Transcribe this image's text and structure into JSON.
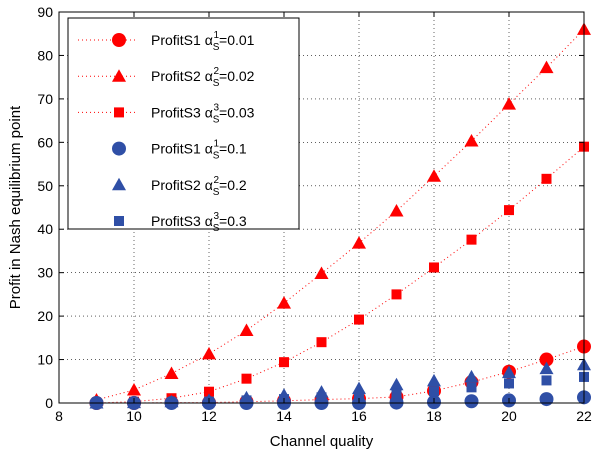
{
  "chart_data": {
    "type": "scatter",
    "xlabel": "Channel quality",
    "ylabel": "Profit in Nash equilibrium point",
    "xlim": [
      8,
      22
    ],
    "ylim": [
      0,
      90
    ],
    "xticks": [
      "8",
      "10",
      "12",
      "14",
      "16",
      "18",
      "20",
      "22"
    ],
    "yticks": [
      "0",
      "10",
      "20",
      "30",
      "40",
      "50",
      "60",
      "70",
      "80",
      "90"
    ],
    "grid": true,
    "legend_placement": "top-left",
    "x": [
      9,
      10,
      11,
      12,
      13,
      14,
      15,
      16,
      17,
      18,
      19,
      20,
      21,
      22
    ],
    "series": [
      {
        "label": "ProfitS1",
        "alpha_index": "1",
        "alpha_value": "=0.01",
        "color": "#ff0000",
        "marker": "circle",
        "dotted_line": true,
        "values": [
          0.0,
          0.0,
          0.1,
          0.1,
          0.3,
          0.5,
          0.8,
          1.0,
          1.4,
          2.8,
          4.8,
          7.2,
          10.0,
          13.0
        ]
      },
      {
        "label": "ProfitS2",
        "alpha_index": "2",
        "alpha_value": "=0.02",
        "color": "#ff0000",
        "marker": "triangle",
        "dotted_line": true,
        "values": [
          0.7,
          3.0,
          6.8,
          11.3,
          16.7,
          23.0,
          29.8,
          36.8,
          44.2,
          52.2,
          60.3,
          68.8,
          77.2,
          86.0
        ]
      },
      {
        "label": "ProfitS3",
        "alpha_index": "3",
        "alpha_value": "=0.03",
        "color": "#ff0000",
        "marker": "square",
        "dotted_line": true,
        "values": [
          0.0,
          0.3,
          1.1,
          2.6,
          5.6,
          9.4,
          14.0,
          19.2,
          25.0,
          31.2,
          37.6,
          44.4,
          51.6,
          59.0
        ]
      },
      {
        "label": "ProfitS1",
        "alpha_index": "1",
        "alpha_value": "=0.1",
        "color": "#2f4fa6",
        "marker": "circle",
        "dotted_line": false,
        "values": [
          0.0,
          0.0,
          0.0,
          0.0,
          0.0,
          0.0,
          0.0,
          0.0,
          0.1,
          0.2,
          0.4,
          0.6,
          0.9,
          1.3
        ]
      },
      {
        "label": "ProfitS2",
        "alpha_index": "2",
        "alpha_value": "=0.2",
        "color": "#2f4fa6",
        "marker": "triangle",
        "dotted_line": false,
        "values": [
          0.0,
          0.1,
          0.3,
          0.6,
          1.2,
          1.8,
          2.5,
          3.3,
          4.2,
          5.1,
          6.0,
          7.0,
          7.9,
          8.8
        ]
      },
      {
        "label": "ProfitS3",
        "alpha_index": "3",
        "alpha_value": "=0.3",
        "color": "#2f4fa6",
        "marker": "square",
        "dotted_line": false,
        "values": [
          0.0,
          0.0,
          0.1,
          0.3,
          0.6,
          0.9,
          1.3,
          1.7,
          2.2,
          2.7,
          3.6,
          4.5,
          5.2,
          6.0
        ]
      }
    ]
  }
}
